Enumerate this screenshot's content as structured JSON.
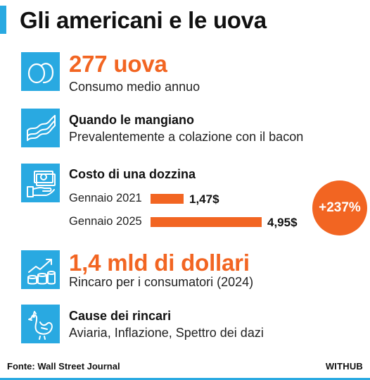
{
  "title": "Gli americani e le uova",
  "colors": {
    "accent": "#f26522",
    "icon_bg": "#29a9e1",
    "text": "#111111"
  },
  "rows": [
    {
      "icon": "eggs-icon",
      "title": "277 uova",
      "subtitle": "Consumo medio annuo"
    },
    {
      "icon": "bacon-icon",
      "title": "Quando le mangiano",
      "subtitle": "Prevalentemente a colazione con il bacon"
    },
    {
      "icon": "money-hand-icon",
      "title": "Costo di una dozzina"
    },
    {
      "icon": "coins-growth-icon",
      "title": "1,4 mld di dollari",
      "subtitle": "Rincaro per i consumatori (2024)"
    },
    {
      "icon": "chicken-icon",
      "title": "Cause dei rincari",
      "subtitle": "Aviaria, Inflazione, Spettro dei dazi"
    }
  ],
  "chart_data": {
    "type": "bar",
    "title": "Costo di una dozzina",
    "categories": [
      "Gennaio 2021",
      "Gennaio 2025"
    ],
    "values": [
      1.47,
      4.95
    ],
    "value_labels": [
      "1,47$",
      "4,95$"
    ],
    "change_label": "+237%"
  },
  "footer": {
    "source": "Fonte: Wall Street Journal",
    "brand": "WITHUB"
  }
}
